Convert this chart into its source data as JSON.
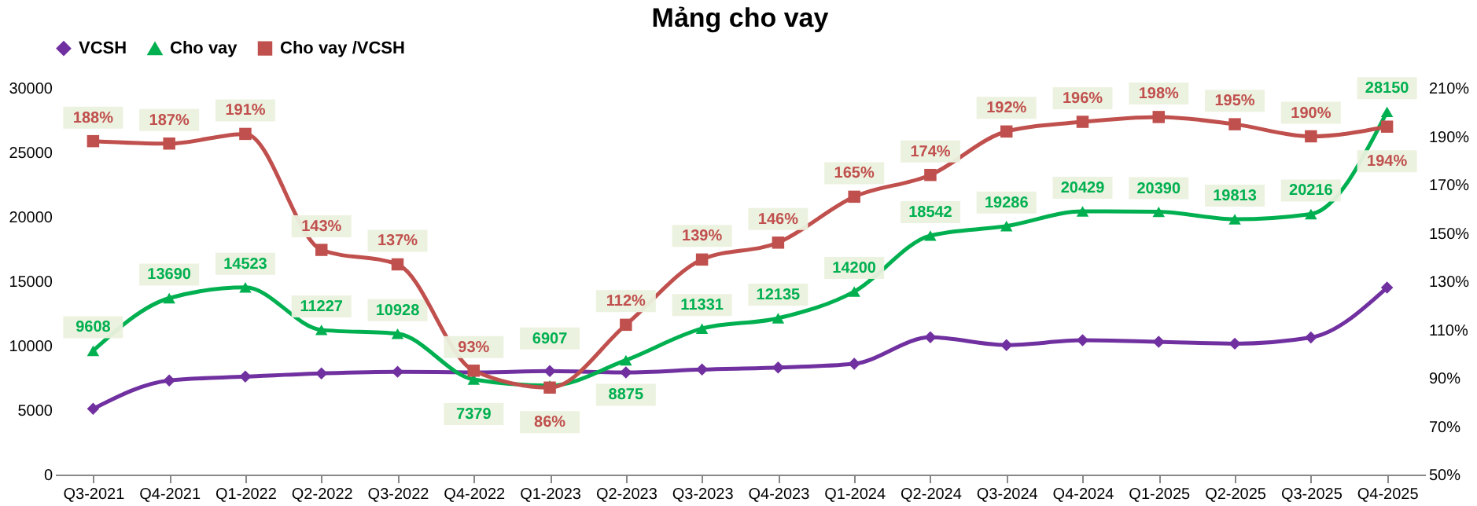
{
  "chart_data": {
    "type": "line",
    "title": "Mảng cho vay",
    "categories": [
      "Q3-2021",
      "Q4-2021",
      "Q1-2022",
      "Q2-2022",
      "Q3-2022",
      "Q4-2022",
      "Q1-2023",
      "Q2-2023",
      "Q3-2023",
      "Q4-2023",
      "Q1-2024",
      "Q2-2024",
      "Q3-2024",
      "Q4-2024",
      "Q1-2025",
      "Q2-2025",
      "Q3-2025",
      "Q4-2025"
    ],
    "series": [
      {
        "name": "VCSH",
        "color": "#7030a0",
        "marker": "diamond",
        "values": [
          5100,
          7300,
          7600,
          7850,
          7980,
          7930,
          8030,
          7920,
          8150,
          8310,
          8600,
          10650,
          10050,
          10420,
          10300,
          10160,
          10640,
          14510
        ]
      },
      {
        "name": "Cho vay",
        "color": "#00b050",
        "marker": "triangle",
        "values": [
          9608,
          13690,
          14523,
          11227,
          10928,
          7379,
          6907,
          8875,
          11331,
          12135,
          14200,
          18542,
          19286,
          20429,
          20390,
          19813,
          20216,
          28150
        ],
        "value_labels": [
          "9608",
          "13690",
          "14523",
          "11227",
          "10928",
          "7379",
          "6907",
          "8875",
          "11331",
          "12135",
          "14200",
          "18542",
          "19286",
          "20429",
          "20390",
          "19813",
          "20216",
          "28150"
        ]
      },
      {
        "name": "Cho vay /VCSH",
        "color": "#c0504d",
        "marker": "square",
        "axis": "y2",
        "values": [
          188,
          187,
          191,
          143,
          137,
          93,
          86,
          112,
          139,
          146,
          165,
          174,
          192,
          196,
          198,
          195,
          190,
          194
        ],
        "value_labels": [
          "188%",
          "187%",
          "191%",
          "143%",
          "137%",
          "93%",
          "86%",
          "112%",
          "139%",
          "146%",
          "165%",
          "174%",
          "192%",
          "196%",
          "198%",
          "195%",
          "190%",
          "194%"
        ]
      }
    ],
    "ylim": [
      0,
      30000
    ],
    "yticks": [
      0,
      5000,
      10000,
      15000,
      20000,
      25000,
      30000
    ],
    "y2lim": [
      50,
      210
    ],
    "y2ticks": [
      {
        "value": 50,
        "label": "50%"
      },
      {
        "value": 70,
        "label": "70%"
      },
      {
        "value": 90,
        "label": "90%"
      },
      {
        "value": 110,
        "label": "110%"
      },
      {
        "value": 130,
        "label": "130%"
      },
      {
        "value": 150,
        "label": "150%"
      },
      {
        "value": 170,
        "label": "170%"
      },
      {
        "value": 190,
        "label": "190%"
      },
      {
        "value": 210,
        "label": "210%"
      }
    ],
    "grid": false,
    "legend": "top",
    "line_style": "solid"
  }
}
